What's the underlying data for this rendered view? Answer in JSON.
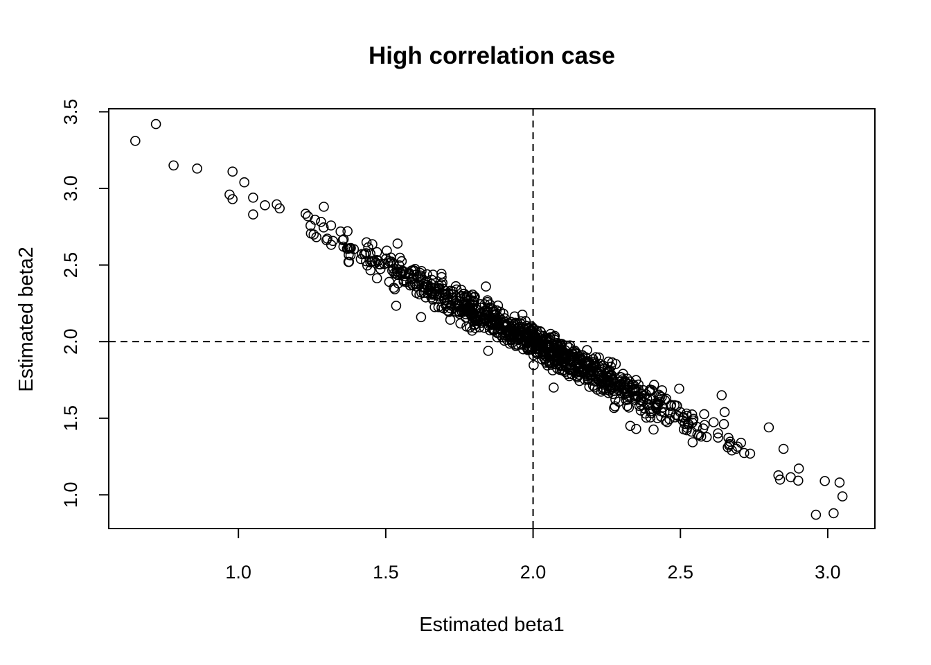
{
  "chart_data": {
    "type": "scatter",
    "title": "High correlation case",
    "xlabel": "Estimated beta1",
    "ylabel": "Estimated beta2",
    "xlim": [
      0.56,
      3.16
    ],
    "ylim": [
      0.78,
      3.52
    ],
    "xticks": [
      1.0,
      1.5,
      2.0,
      2.5,
      3.0
    ],
    "xtick_labels": [
      "1.0",
      "1.5",
      "2.0",
      "2.5",
      "3.0"
    ],
    "yticks": [
      1.0,
      1.5,
      2.0,
      2.5,
      3.0,
      3.5
    ],
    "ytick_labels": [
      "1.0",
      "1.5",
      "2.0",
      "2.5",
      "3.0",
      "3.5"
    ],
    "reference_lines": {
      "vertical_x": 2.0,
      "horizontal_y": 2.0,
      "style": "dashed"
    },
    "grid": false,
    "marker": "open-circle",
    "color": "#000000",
    "points": {
      "count": 1000,
      "trend": "y ≈ 4.0 − x",
      "x_mean": 2.0,
      "x_sd": 0.3,
      "residual_sd": 0.055,
      "seed": 12345,
      "outliers": [
        [
          0.65,
          3.31
        ],
        [
          0.72,
          3.42
        ],
        [
          0.78,
          3.15
        ],
        [
          0.86,
          3.13
        ],
        [
          0.98,
          3.11
        ],
        [
          1.02,
          3.04
        ],
        [
          0.97,
          2.96
        ],
        [
          0.98,
          2.93
        ],
        [
          1.05,
          2.94
        ],
        [
          1.09,
          2.89
        ],
        [
          1.05,
          2.83
        ],
        [
          1.14,
          2.87
        ],
        [
          1.29,
          2.88
        ],
        [
          2.96,
          0.87
        ],
        [
          3.02,
          0.88
        ],
        [
          3.05,
          0.99
        ],
        [
          3.04,
          1.08
        ],
        [
          2.99,
          1.09
        ],
        [
          2.85,
          1.3
        ],
        [
          2.8,
          1.44
        ],
        [
          2.64,
          1.65
        ],
        [
          2.65,
          1.54
        ],
        [
          2.35,
          1.43
        ],
        [
          2.33,
          1.45
        ],
        [
          1.62,
          2.16
        ],
        [
          1.84,
          2.36
        ],
        [
          1.54,
          2.64
        ],
        [
          2.07,
          1.7
        ]
      ]
    }
  }
}
